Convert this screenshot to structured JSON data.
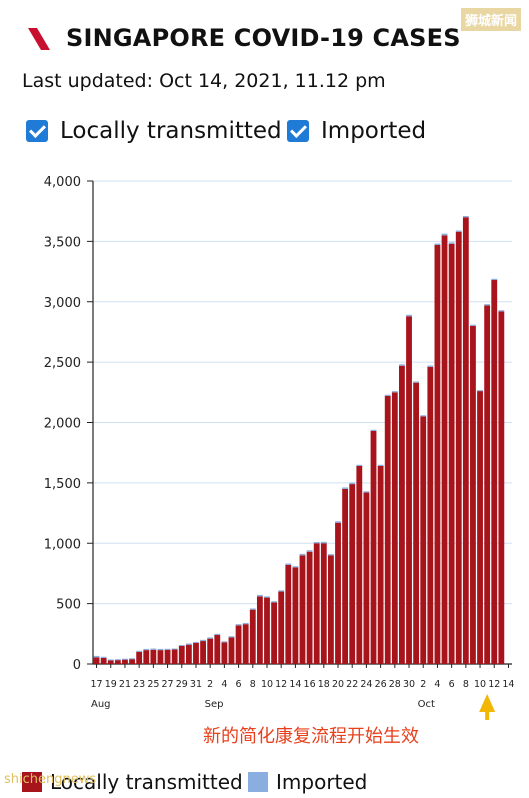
{
  "header": {
    "title": "SINGAPORE COVID-19 CASES",
    "last_updated": "Last updated: Oct 14, 2021, 11.12 pm",
    "logo_icon": "red-slash-logo-icon"
  },
  "toggles": [
    {
      "label": "Locally transmitted",
      "checked": true
    },
    {
      "label": "Imported",
      "checked": true
    }
  ],
  "watermark": "狮城新闻",
  "watermark_bottom": "shichengnews",
  "annotation": "新的简化康复流程开始生效",
  "legend": [
    {
      "label": "Locally transmitted",
      "color": "#a8141b"
    },
    {
      "label": "Imported",
      "color": "#8aaee0"
    }
  ],
  "colors": {
    "local": "#a8141b",
    "imported": "#8aaee0",
    "arrow": "#f2b705",
    "grid": "#cfe0f2",
    "checkbox": "#1f7bd6"
  },
  "chart_data": {
    "type": "bar",
    "stacked": true,
    "ylim": [
      0,
      4000
    ],
    "y_ticks": [
      "0",
      "500",
      "1,000",
      "1,500",
      "2,000",
      "2,500",
      "3,000",
      "3,500",
      "4,000"
    ],
    "x_tick_labels": [
      "17",
      "19",
      "21",
      "23",
      "25",
      "27",
      "29",
      "31",
      "2",
      "4",
      "6",
      "8",
      "10",
      "12",
      "14",
      "16",
      "18",
      "20",
      "22",
      "24",
      "26",
      "28",
      "30",
      "2",
      "4",
      "6",
      "8",
      "10",
      "12",
      "14"
    ],
    "month_labels": [
      {
        "label": "Aug",
        "tick": "17"
      },
      {
        "label": "Sep",
        "tick": "2"
      },
      {
        "label": "Oct",
        "tick": "2"
      }
    ],
    "grid": true,
    "legend_position": "bottom",
    "categories": [
      "Aug 17",
      "Aug 18",
      "Aug 19",
      "Aug 20",
      "Aug 21",
      "Aug 22",
      "Aug 23",
      "Aug 24",
      "Aug 25",
      "Aug 26",
      "Aug 27",
      "Aug 28",
      "Aug 29",
      "Aug 30",
      "Aug 31",
      "Sep 1",
      "Sep 2",
      "Sep 3",
      "Sep 4",
      "Sep 5",
      "Sep 6",
      "Sep 7",
      "Sep 8",
      "Sep 9",
      "Sep 10",
      "Sep 11",
      "Sep 12",
      "Sep 13",
      "Sep 14",
      "Sep 15",
      "Sep 16",
      "Sep 17",
      "Sep 18",
      "Sep 19",
      "Sep 20",
      "Sep 21",
      "Sep 22",
      "Sep 23",
      "Sep 24",
      "Sep 25",
      "Sep 26",
      "Sep 27",
      "Sep 28",
      "Sep 29",
      "Sep 30",
      "Oct 1",
      "Oct 2",
      "Oct 3",
      "Oct 4",
      "Oct 5",
      "Oct 6",
      "Oct 7",
      "Oct 8",
      "Oct 9",
      "Oct 10",
      "Oct 11",
      "Oct 12",
      "Oct 13",
      "Oct 14"
    ],
    "series": [
      {
        "name": "Locally transmitted",
        "values": [
          55,
          50,
          30,
          32,
          36,
          40,
          100,
          115,
          118,
          115,
          118,
          120,
          150,
          160,
          175,
          190,
          210,
          240,
          180,
          220,
          320,
          330,
          450,
          560,
          550,
          510,
          600,
          820,
          800,
          900,
          930,
          1000,
          1000,
          900,
          1170,
          1450,
          1490,
          1640,
          1420,
          1930,
          1640,
          2220,
          2250,
          2470,
          2880,
          2330,
          2050,
          2460,
          3470,
          3550,
          3480,
          3580,
          3700,
          2800,
          2260,
          2970,
          3180,
          2920,
          0
        ]
      },
      {
        "name": "Imported",
        "values": [
          12,
          10,
          8,
          8,
          8,
          8,
          10,
          10,
          10,
          10,
          8,
          8,
          8,
          10,
          8,
          10,
          10,
          10,
          8,
          10,
          10,
          10,
          10,
          12,
          10,
          10,
          10,
          12,
          10,
          12,
          12,
          10,
          12,
          10,
          12,
          12,
          12,
          10,
          10,
          10,
          10,
          10,
          10,
          12,
          12,
          10,
          10,
          12,
          12,
          14,
          12,
          10,
          10,
          10,
          8,
          10,
          10,
          10,
          0
        ]
      }
    ]
  }
}
